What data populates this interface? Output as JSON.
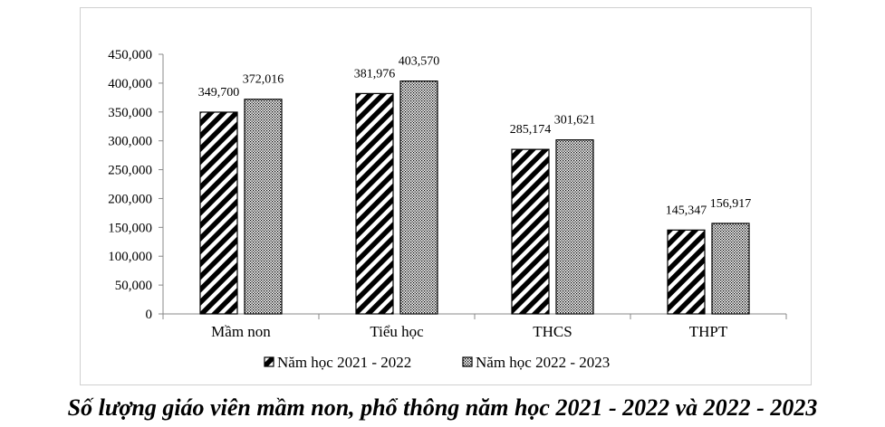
{
  "chart_data": {
    "type": "bar",
    "categories": [
      "Mầm non",
      "Tiểu học",
      "THCS",
      "THPT"
    ],
    "series": [
      {
        "name": "Năm học 2021 - 2022",
        "values": [
          349700,
          381976,
          285174,
          145347
        ],
        "value_labels": [
          "349,700",
          "381,976",
          "285,174",
          "145,347"
        ],
        "pattern": "diagonal-stripes"
      },
      {
        "name": "Năm học 2022 - 2023",
        "values": [
          372016,
          403570,
          301621,
          156917
        ],
        "value_labels": [
          "372,016",
          "403,570",
          "301,621",
          "156,917"
        ],
        "pattern": "dots"
      }
    ],
    "yticks": [
      0,
      50000,
      100000,
      150000,
      200000,
      250000,
      300000,
      350000,
      400000,
      450000
    ],
    "ytick_labels": [
      "0",
      "50,000",
      "100,000",
      "150,000",
      "200,000",
      "250,000",
      "300,000",
      "350,000",
      "400,000",
      "450,000"
    ],
    "ylim": [
      0,
      450000
    ],
    "legend_position": "bottom",
    "grid": false
  },
  "caption": "Số lượng giáo viên mầm non, phổ thông năm học 2021 - 2022 và 2022 - 2023"
}
